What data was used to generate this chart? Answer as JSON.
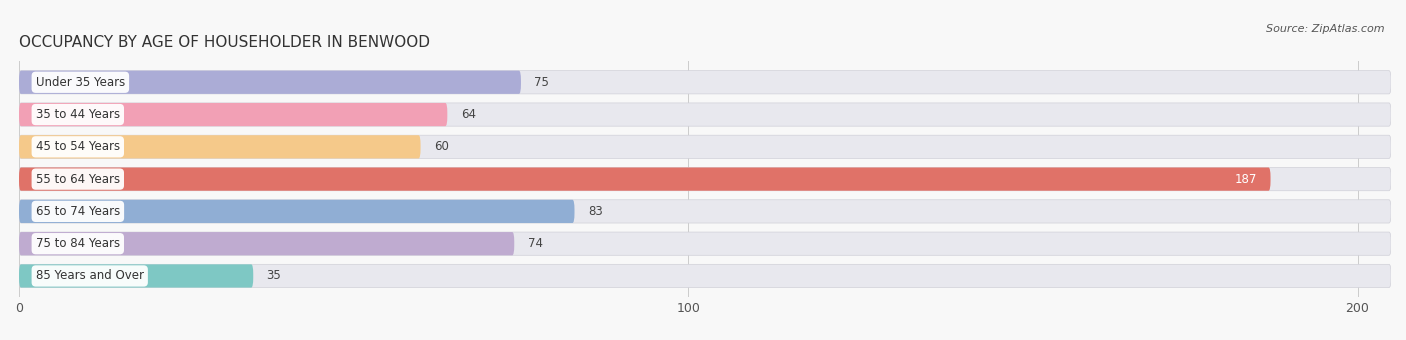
{
  "title": "OCCUPANCY BY AGE OF HOUSEHOLDER IN BENWOOD",
  "source": "Source: ZipAtlas.com",
  "categories": [
    "Under 35 Years",
    "35 to 44 Years",
    "45 to 54 Years",
    "55 to 64 Years",
    "65 to 74 Years",
    "75 to 84 Years",
    "85 Years and Over"
  ],
  "values": [
    75,
    64,
    60,
    187,
    83,
    74,
    35
  ],
  "bar_colors": [
    "#abacd6",
    "#f2a0b5",
    "#f5c98a",
    "#e07268",
    "#90aed4",
    "#bfabd0",
    "#7ec8c4"
  ],
  "bar_bg_color": "#e8e8ee",
  "xlim": [
    0,
    205
  ],
  "xticks": [
    0,
    100,
    200
  ],
  "title_fontsize": 11,
  "bar_height": 0.72,
  "figsize": [
    14.06,
    3.4
  ],
  "dpi": 100,
  "bg_color": "#f8f8f8"
}
